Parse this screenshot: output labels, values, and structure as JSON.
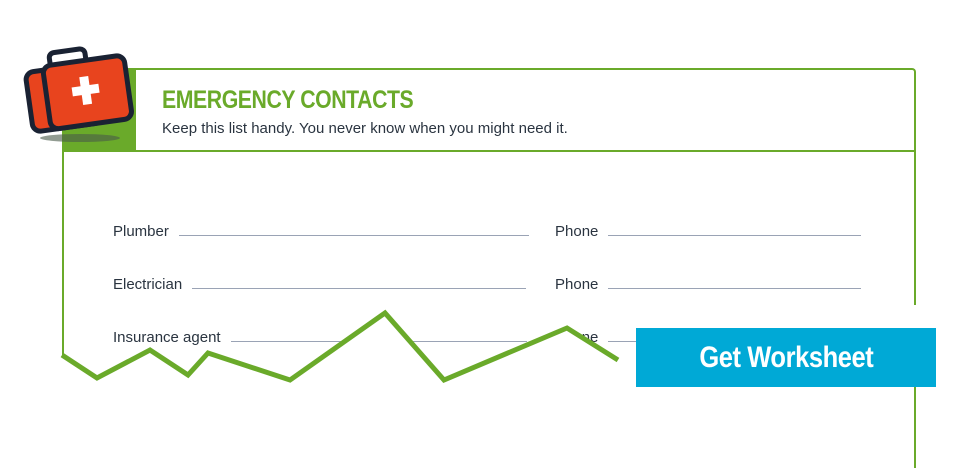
{
  "header": {
    "title": "EMERGENCY CONTACTS",
    "subtitle": "Keep this list handy. You never know when you might need it."
  },
  "fields": [
    {
      "label": "Plumber",
      "phone_label": "Phone"
    },
    {
      "label": "Electrician",
      "phone_label": "Phone"
    },
    {
      "label": "Insurance agent",
      "phone_label": "Phone"
    }
  ],
  "cta": {
    "label": "Get Worksheet"
  },
  "icons": {
    "kit": "first-aid-kit-icon"
  },
  "colors": {
    "accent": "#6aaa2a",
    "button": "#00a9d6",
    "kit": "#e8441e"
  }
}
